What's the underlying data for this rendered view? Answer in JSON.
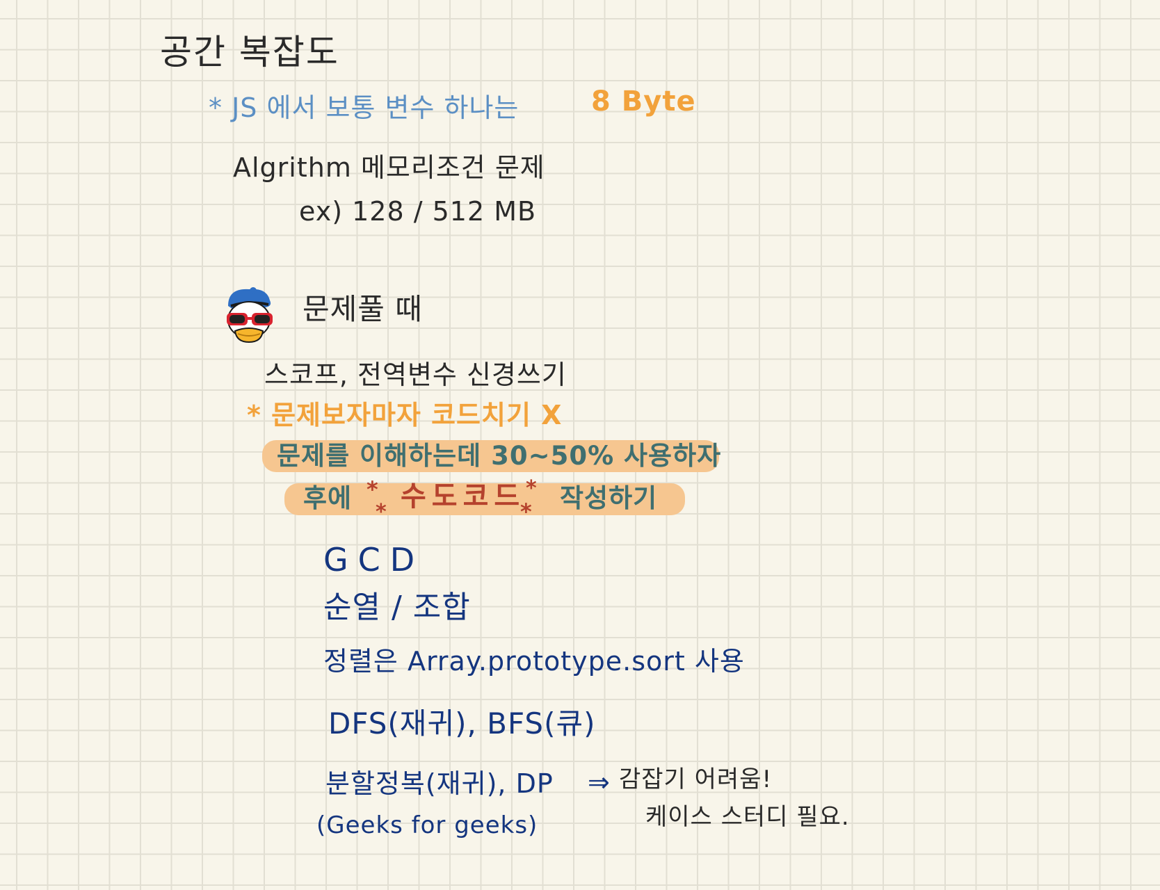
{
  "title": "공간 복잡도",
  "note_js": {
    "prefix": "* JS 에서 보통 변수 하나는",
    "value": "8 Byte"
  },
  "algorithm_line": "Algrithm 메모리조건 문제",
  "example_line": "ex) 128 / 512 MB",
  "avatar_icon": "donald-duck-sunglasses-emoji",
  "section_title": "문제풀 때",
  "tip_scope": "스코프, 전역변수 신경쓰기",
  "tip_no_code": "* 문제보자마자 코드치기 X",
  "highlight_understand": "문제를 이해하는데 30~50% 사용하자",
  "highlight_pseudo": {
    "before": "후에",
    "star": "*",
    "word": "수도코드",
    "after": "작성하기"
  },
  "topics": {
    "gcd": "GCD",
    "perm": "순열 / 조합",
    "sort": "정렬은 Array.prototype.sort 사용",
    "search": "DFS(재귀), BFS(큐)",
    "divide": "분할정복(재귀), DP",
    "divide_arrow": "⇒",
    "divide_note1": "감잡기 어려움!",
    "divide_note2": "케이스 스터디 필요.",
    "geeks": "(Geeks for geeks)"
  },
  "colors": {
    "paper": "#f8f5ea",
    "grid": "#e2dfd3",
    "blue_note": "#5b8fc4",
    "orange": "#f2a23b",
    "highlight": "#f6c690",
    "navy": "#14357f",
    "red_star": "#b5422d"
  }
}
